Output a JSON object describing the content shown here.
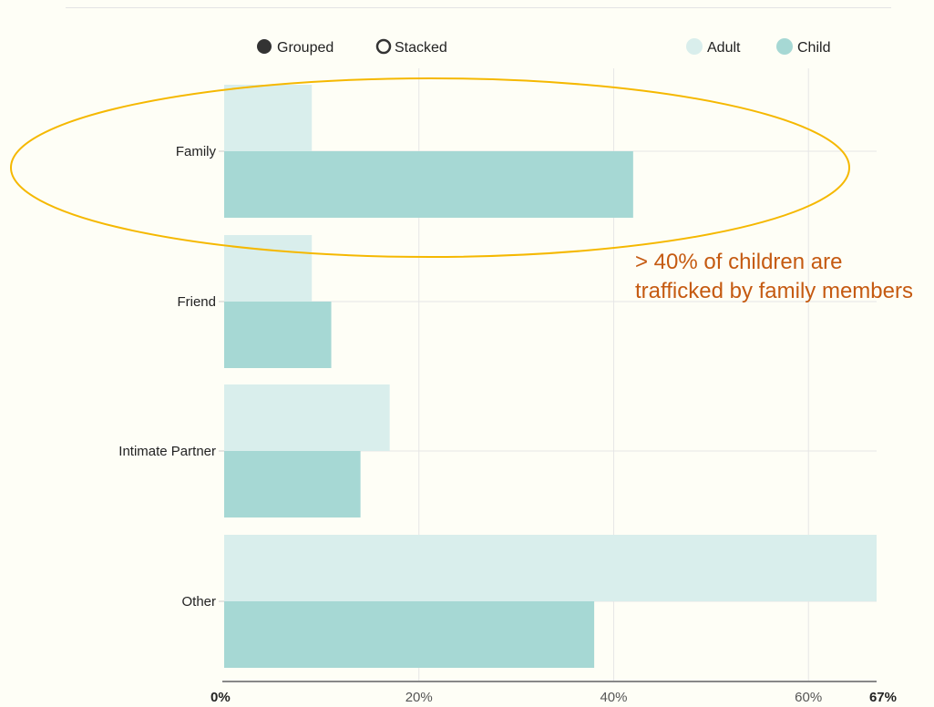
{
  "controls": {
    "grouped_label": "Grouped",
    "stacked_label": "Stacked",
    "selected": "Grouped"
  },
  "annotation": {
    "text": "> 40% of children are trafficked by family members",
    "color": "#c55a11",
    "highlight_color": "#f5b800",
    "highlighted_category": "Family"
  },
  "chart_data": {
    "type": "bar",
    "orientation": "horizontal",
    "categories": [
      "Family",
      "Friend",
      "Intimate Partner",
      "Other"
    ],
    "series": [
      {
        "name": "Adult",
        "values": [
          9,
          9,
          17,
          67
        ],
        "color": "#d9eeec"
      },
      {
        "name": "Child",
        "values": [
          42,
          11,
          14,
          38
        ],
        "color": "#a6d8d4"
      }
    ],
    "x_ticks": [
      "0%",
      "20%",
      "40%",
      "60%",
      "67%"
    ],
    "x_tick_values": [
      0,
      20,
      40,
      60,
      67
    ],
    "xlim": [
      0,
      67
    ],
    "unit": "%",
    "grid": true,
    "legend_position": "top-right",
    "title": "",
    "xlabel": "",
    "ylabel": ""
  }
}
